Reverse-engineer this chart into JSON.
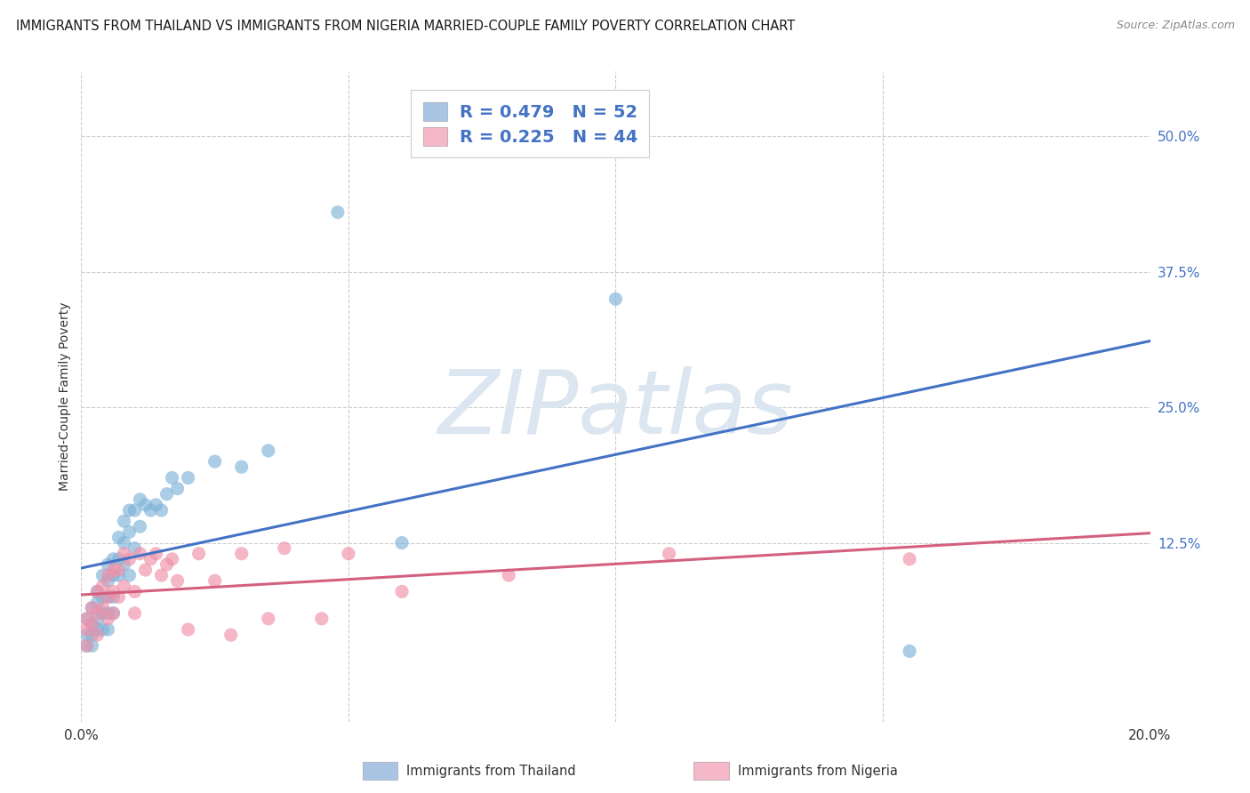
{
  "title": "IMMIGRANTS FROM THAILAND VS IMMIGRANTS FROM NIGERIA MARRIED-COUPLE FAMILY POVERTY CORRELATION CHART",
  "source": "Source: ZipAtlas.com",
  "ylabel": "Married-Couple Family Poverty",
  "xlim": [
    0.0,
    0.2
  ],
  "ylim": [
    -0.04,
    0.56
  ],
  "ytick_labels_right": [
    "50.0%",
    "37.5%",
    "25.0%",
    "12.5%"
  ],
  "ytick_vals_right": [
    0.5,
    0.375,
    0.25,
    0.125
  ],
  "legend_label1": "R = 0.479   N = 52",
  "legend_label2": "R = 0.225   N = 44",
  "legend_color1": "#aac4e4",
  "legend_color2": "#f5b8c8",
  "scatter_color1": "#7fb3d8",
  "scatter_color2": "#f090a8",
  "line_color1": "#4472c4",
  "line_color2": "#d46080",
  "watermark": "ZIPatlas",
  "watermark_color": "#dce6f0",
  "footer_label1": "Immigrants from Thailand",
  "footer_label2": "Immigrants from Nigeria",
  "thailand_x": [
    0.001,
    0.001,
    0.001,
    0.002,
    0.002,
    0.002,
    0.002,
    0.003,
    0.003,
    0.003,
    0.003,
    0.004,
    0.004,
    0.004,
    0.004,
    0.005,
    0.005,
    0.005,
    0.005,
    0.005,
    0.006,
    0.006,
    0.006,
    0.006,
    0.007,
    0.007,
    0.007,
    0.008,
    0.008,
    0.008,
    0.009,
    0.009,
    0.009,
    0.01,
    0.01,
    0.011,
    0.011,
    0.012,
    0.013,
    0.014,
    0.015,
    0.016,
    0.017,
    0.018,
    0.02,
    0.025,
    0.03,
    0.035,
    0.048,
    0.06,
    0.1,
    0.155
  ],
  "thailand_y": [
    0.055,
    0.04,
    0.03,
    0.065,
    0.05,
    0.04,
    0.03,
    0.08,
    0.07,
    0.055,
    0.045,
    0.095,
    0.075,
    0.06,
    0.045,
    0.105,
    0.09,
    0.075,
    0.06,
    0.045,
    0.11,
    0.095,
    0.075,
    0.06,
    0.13,
    0.11,
    0.095,
    0.145,
    0.125,
    0.105,
    0.155,
    0.135,
    0.095,
    0.155,
    0.12,
    0.165,
    0.14,
    0.16,
    0.155,
    0.16,
    0.155,
    0.17,
    0.185,
    0.175,
    0.185,
    0.2,
    0.195,
    0.21,
    0.43,
    0.125,
    0.35,
    0.025
  ],
  "nigeria_x": [
    0.001,
    0.001,
    0.001,
    0.002,
    0.002,
    0.003,
    0.003,
    0.003,
    0.004,
    0.004,
    0.005,
    0.005,
    0.005,
    0.006,
    0.006,
    0.006,
    0.007,
    0.007,
    0.008,
    0.008,
    0.009,
    0.01,
    0.01,
    0.011,
    0.012,
    0.013,
    0.014,
    0.015,
    0.016,
    0.017,
    0.018,
    0.02,
    0.022,
    0.025,
    0.028,
    0.03,
    0.035,
    0.038,
    0.045,
    0.05,
    0.06,
    0.08,
    0.11,
    0.155
  ],
  "nigeria_y": [
    0.055,
    0.045,
    0.03,
    0.065,
    0.05,
    0.08,
    0.06,
    0.04,
    0.085,
    0.065,
    0.095,
    0.075,
    0.055,
    0.1,
    0.08,
    0.06,
    0.1,
    0.075,
    0.115,
    0.085,
    0.11,
    0.08,
    0.06,
    0.115,
    0.1,
    0.11,
    0.115,
    0.095,
    0.105,
    0.11,
    0.09,
    0.045,
    0.115,
    0.09,
    0.04,
    0.115,
    0.055,
    0.12,
    0.055,
    0.115,
    0.08,
    0.095,
    0.115,
    0.11
  ],
  "bg_color": "#ffffff",
  "grid_color": "#cccccc",
  "tick_color_blue": "#4472c4",
  "tick_color_dark": "#333333"
}
